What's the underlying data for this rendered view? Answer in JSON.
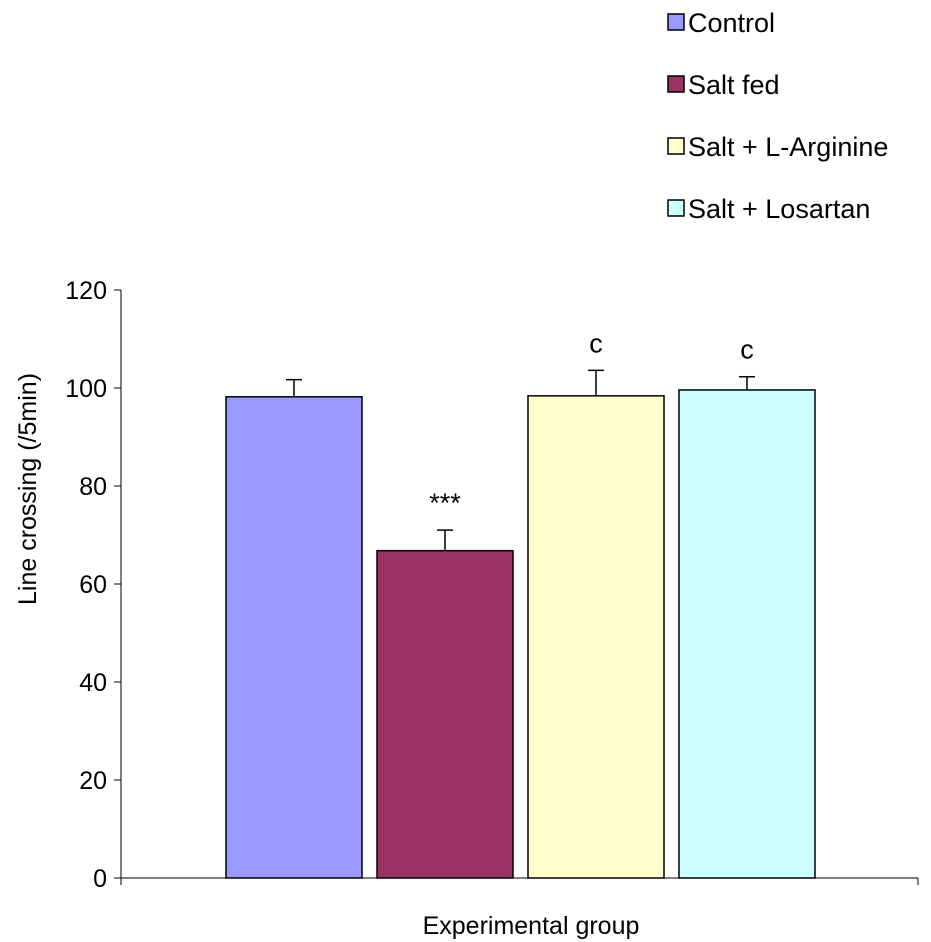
{
  "chart_data": {
    "type": "bar",
    "title": "",
    "xlabel": "Experimental group",
    "ylabel": "Line crossing (/5min)",
    "ylim": [
      0,
      120
    ],
    "yticks": [
      0,
      20,
      40,
      60,
      80,
      100,
      120
    ],
    "grid": false,
    "legend_position": "top-right",
    "series": [
      {
        "name": "Control",
        "value": 98.2,
        "error": 3.5,
        "annotation": "",
        "color": "#9999FF"
      },
      {
        "name": "Salt fed",
        "value": 66.8,
        "error": 4.2,
        "annotation": "***",
        "color": "#993366"
      },
      {
        "name": "Salt + L-Arginine",
        "value": 98.4,
        "error": 5.2,
        "annotation": "c",
        "color": "#FFFFCC"
      },
      {
        "name": "Salt + Losartan",
        "value": 99.6,
        "error": 2.7,
        "annotation": "c",
        "color": "#CCFFFF"
      }
    ]
  }
}
